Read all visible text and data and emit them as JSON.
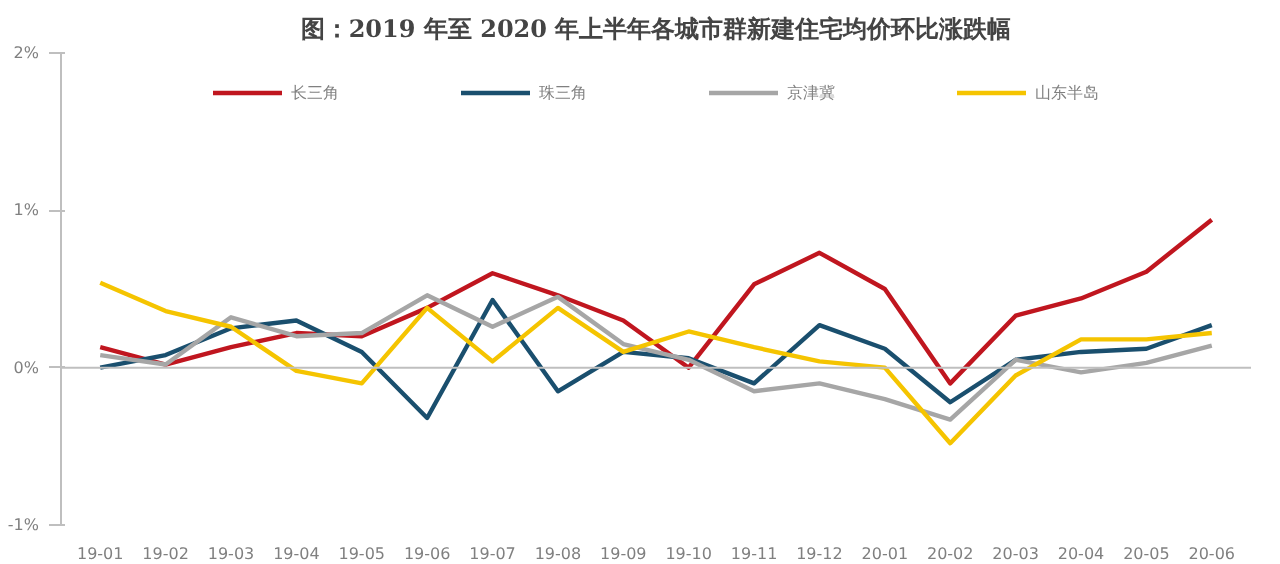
{
  "chart_data": {
    "type": "line",
    "title": "图：2019 年至 2020 年上半年各城市群新建住宅均价环比涨跌幅",
    "categories": [
      "19-01",
      "19-02",
      "19-03",
      "19-04",
      "19-05",
      "19-06",
      "19-07",
      "19-08",
      "19-09",
      "19-10",
      "19-11",
      "19-12",
      "20-01",
      "20-02",
      "20-03",
      "20-04",
      "20-05",
      "20-06"
    ],
    "series": [
      {
        "name": "长三角",
        "color": "#c0161f",
        "values": [
          0.13,
          0.02,
          0.13,
          0.22,
          0.2,
          0.38,
          0.6,
          0.46,
          0.3,
          0.0,
          0.53,
          0.73,
          0.5,
          -0.1,
          0.33,
          0.44,
          0.61,
          0.94
        ]
      },
      {
        "name": "珠三角",
        "color": "#1a4f6e",
        "values": [
          0.0,
          0.08,
          0.25,
          0.3,
          0.1,
          -0.32,
          0.43,
          -0.15,
          0.1,
          0.06,
          -0.1,
          0.27,
          0.12,
          -0.22,
          0.05,
          0.1,
          0.12,
          0.27
        ]
      },
      {
        "name": "京津冀",
        "color": "#a6a6a6",
        "values": [
          0.08,
          0.02,
          0.32,
          0.2,
          0.22,
          0.46,
          0.26,
          0.45,
          0.15,
          0.05,
          -0.15,
          -0.1,
          -0.2,
          -0.33,
          0.05,
          -0.03,
          0.03,
          0.14
        ]
      },
      {
        "name": "山东半岛",
        "color": "#f5c400",
        "values": [
          0.54,
          0.36,
          0.26,
          -0.02,
          -0.1,
          0.38,
          0.04,
          0.38,
          0.1,
          0.23,
          0.13,
          0.04,
          0.0,
          -0.48,
          -0.05,
          0.18,
          0.18,
          0.22
        ]
      }
    ],
    "ylim": [
      -1,
      2
    ],
    "yticks": [
      {
        "value": -1,
        "label": "-1%"
      },
      {
        "value": 0,
        "label": "0%"
      },
      {
        "value": 1,
        "label": "1%"
      },
      {
        "value": 2,
        "label": "2%"
      }
    ],
    "ref_lines": [
      {
        "axis": "y",
        "value": 0,
        "color": "#bfbfbf"
      }
    ],
    "grid": false,
    "legend": "top",
    "line_style": "solid",
    "marker": "none"
  }
}
